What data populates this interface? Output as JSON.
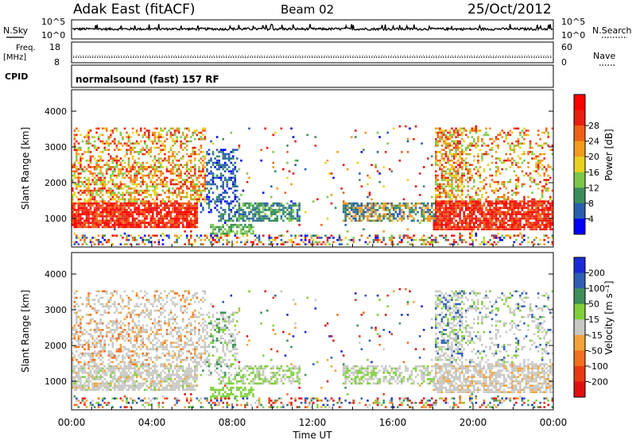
{
  "header": {
    "title": "Adak East (fitACF)",
    "beam": "Beam 02",
    "date": "25/Oct/2012"
  },
  "summary": {
    "nsky_label": "N.Sky",
    "nsearch_label": "N.Search",
    "freq_label": "Freq.",
    "freq_unit": "[MHz]",
    "nave_label": "Nave",
    "cpid_label": "CPID",
    "cpid_text": "normalsound (fast) 157 RF",
    "noise_ticks": {
      "top_left": "10^5",
      "bottom_left": "10^0",
      "top_right": "10^5",
      "bottom_right": "10^0"
    },
    "freq_ticks": [
      "18",
      "8"
    ],
    "nave_ticks": [
      "60",
      "0"
    ]
  },
  "chart_data": [
    {
      "type": "heatmap",
      "panel": "power",
      "ylabel": "Slant Range [km]",
      "xlabel": "Time UT",
      "ylim": [
        200,
        4600
      ],
      "yticks": [
        "1000",
        "2000",
        "3000",
        "4000"
      ],
      "xticks": [
        "00:00",
        "04:00",
        "08:00",
        "12:00",
        "16:00",
        "20:00",
        "00:00"
      ],
      "colorbar": {
        "label": "Power [dB]",
        "ticks": [
          "4",
          "8",
          "12",
          "16",
          "20",
          "24",
          "28"
        ],
        "colors": [
          "#0000ff",
          "#2a5fb0",
          "#3b8f5c",
          "#7bc84a",
          "#e8d21e",
          "#f29b1c",
          "#f06018",
          "#e82010",
          "#ff0000"
        ]
      },
      "regions": [
        {
          "name": "night-low",
          "t": [
            0,
            6.2
          ],
          "r": [
            700,
            1450
          ],
          "level": "high"
        },
        {
          "name": "night-mid",
          "t": [
            0,
            6.5
          ],
          "r": [
            1450,
            3500
          ],
          "level": "mixed"
        },
        {
          "name": "dawn-blue",
          "t": [
            6.4,
            8.2
          ],
          "r": [
            1200,
            2800
          ],
          "level": "low"
        },
        {
          "name": "morning",
          "t": [
            7.3,
            11.2
          ],
          "r": [
            900,
            1400
          ],
          "level": "mid"
        },
        {
          "name": "afternoon",
          "t": [
            13.5,
            18.0
          ],
          "r": [
            900,
            1400
          ],
          "level": "mid"
        },
        {
          "name": "evening-low",
          "t": [
            18.0,
            24
          ],
          "r": [
            700,
            1500
          ],
          "level": "high"
        },
        {
          "name": "evening-mid",
          "t": [
            18.0,
            24
          ],
          "r": [
            1500,
            3500
          ],
          "level": "mixed"
        }
      ]
    },
    {
      "type": "heatmap",
      "panel": "velocity",
      "ylabel": "Slant Range [km]",
      "xlabel": "Time UT",
      "ylim": [
        200,
        4600
      ],
      "yticks": [
        "1000",
        "2000",
        "3000",
        "4000"
      ],
      "xticks": [
        "00:00",
        "04:00",
        "08:00",
        "12:00",
        "16:00",
        "20:00",
        "00:00"
      ],
      "colorbar": {
        "label": "Velocity [m s⁻¹]",
        "ticks": [
          "200",
          "100",
          "50",
          "15",
          "-15",
          "-50",
          "-100",
          "-200"
        ],
        "colors": [
          "#1a2ad8",
          "#2f5fb2",
          "#3e8f5a",
          "#7fcf3a",
          "#c8c8c4",
          "#f2a33a",
          "#f2701f",
          "#e83a12",
          "#e01010"
        ]
      }
    }
  ]
}
